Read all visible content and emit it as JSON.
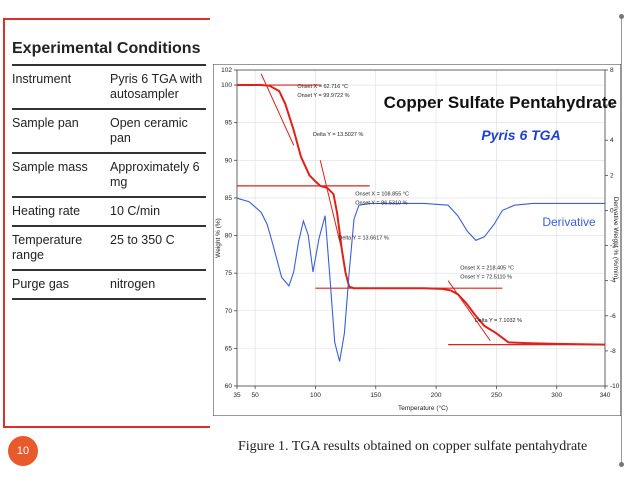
{
  "conditions": {
    "title": "Experimental Conditions",
    "rows": [
      {
        "label": "Instrument",
        "value": "Pyris 6 TGA with autosampler"
      },
      {
        "label": "Sample pan",
        "value": "Open ceramic pan"
      },
      {
        "label": "Sample mass",
        "value": "Approximately 6 mg"
      },
      {
        "label": "Heating rate",
        "value": "10 C/min"
      },
      {
        "label": "Temperature range",
        "value": "25 to 350 C"
      },
      {
        "label": "Purge gas",
        "value": "nitrogen"
      }
    ]
  },
  "slide": {
    "page_number": "10",
    "caption": "Figure 1. TGA results obtained on copper sulfate pentahydrate"
  },
  "colors": {
    "accent": "#d9322a",
    "badge": "#e85a2b",
    "weight_curve": "#e0201a",
    "derivative_curve": "#3a5fd9",
    "subtitle": "#1f3fcf"
  },
  "chart_data": {
    "type": "line",
    "title": "Copper Sulfate Pentahydrate",
    "subtitle": "Pyris 6 TGA",
    "xlabel": "Temperature (°C)",
    "ylabel": "Weight % (%)",
    "y2label": "Derivative Weight % (%/min)",
    "xlim": [
      35,
      340
    ],
    "ylim": [
      60,
      102
    ],
    "y2lim": [
      -10,
      8
    ],
    "x_ticks": [
      35,
      50,
      100,
      150,
      200,
      250,
      300,
      340
    ],
    "y_ticks": [
      60,
      65,
      70,
      75,
      80,
      85,
      90,
      95,
      100,
      102
    ],
    "y2_ticks": [
      -10,
      -8,
      -6,
      -4,
      -2,
      0,
      2,
      4,
      6,
      8
    ],
    "derivative_label": "Derivative",
    "series": [
      {
        "axis": "left",
        "x": [
          35,
          45,
          55,
          62,
          70,
          75,
          82,
          88,
          95,
          100,
          104,
          110,
          115,
          118,
          122,
          125,
          128,
          132,
          140,
          160,
          190,
          205,
          212,
          218,
          225,
          232,
          240,
          250,
          260,
          275,
          300,
          340
        ],
        "y": [
          100,
          100,
          100,
          99.9,
          99.2,
          97.5,
          94,
          90.5,
          88,
          87.2,
          86.6,
          86.3,
          85.5,
          83,
          78,
          75,
          73.2,
          73,
          73,
          73,
          73,
          72.9,
          72.7,
          72.2,
          71,
          69.5,
          68,
          67,
          65.8,
          65.7,
          65.6,
          65.5
        ]
      },
      {
        "axis": "right",
        "x": [
          35,
          45,
          55,
          60,
          65,
          72,
          78,
          82,
          86,
          90,
          94,
          98,
          103,
          108,
          112,
          116,
          120,
          124,
          128,
          132,
          136,
          145,
          160,
          190,
          210,
          218,
          226,
          233,
          240,
          248,
          255,
          265,
          280,
          300,
          340
        ],
        "y": [
          0.7,
          0.5,
          -0.1,
          -0.8,
          -2,
          -3.8,
          -4.3,
          -3.5,
          -1.8,
          -0.6,
          -1.4,
          -3.5,
          -1.6,
          -0.3,
          -3.8,
          -7.5,
          -8.6,
          -7,
          -3.5,
          -0.5,
          0.3,
          0.4,
          0.4,
          0.4,
          0.3,
          -0.3,
          -1.2,
          -1.7,
          -1.5,
          -0.8,
          0,
          0.3,
          0.4,
          0.4,
          0.4
        ]
      }
    ],
    "annotations": [
      {
        "text": "Onset X = 62.716 °C",
        "x": 85,
        "y": 99.6
      },
      {
        "text": "Onset Y = 99.9722 %",
        "x": 85,
        "y": 98.4
      },
      {
        "text": "Delta Y = 13.5027 %",
        "x": 98,
        "y": 93.2
      },
      {
        "text": "Onset X = 108.855 °C",
        "x": 133,
        "y": 85.3
      },
      {
        "text": "Onset Y = 86.5310 %",
        "x": 133,
        "y": 84.1
      },
      {
        "text": "Delta Y = 13.6617 %",
        "x": 119,
        "y": 79.5
      },
      {
        "text": "Onset X = 218.405 °C",
        "x": 220,
        "y": 75.5
      },
      {
        "text": "Onset Y = 72.5110 %",
        "x": 220,
        "y": 74.3
      },
      {
        "text": "Delta Y = 7.1032 %",
        "x": 232,
        "y": 68.5
      }
    ]
  }
}
